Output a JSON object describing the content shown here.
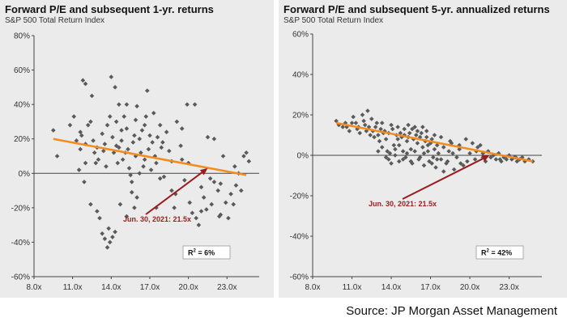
{
  "source_text": "Source: JP Morgan Asset Management",
  "colors": {
    "background": "#ebebeb",
    "marker": "#5a5a5a",
    "trend": "#f28c1e",
    "annotation": "#9b1c1c"
  },
  "chart_data": [
    {
      "type": "scatter",
      "title": "Forward P/E and subsequent 1-yr. returns",
      "subtitle": "S&P 500 Total Return Index",
      "xlabel": "",
      "ylabel": "",
      "xlim": [
        8,
        25.5
      ],
      "ylim": [
        -60,
        80
      ],
      "x_ticks": [
        "8.0x",
        "11.0x",
        "14.0x",
        "17.0x",
        "20.0x",
        "23.0x"
      ],
      "y_ticks": [
        "80%",
        "60%",
        "40%",
        "20%",
        "0%",
        "-20%",
        "-40%",
        "-60%"
      ],
      "trendline": [
        [
          9.5,
          20
        ],
        [
          24.5,
          -1
        ]
      ],
      "annotation": {
        "text": "Jun. 30, 2021: 21.5x",
        "point": [
          21.5,
          3
        ]
      },
      "r_squared": {
        "label": "R",
        "sup": "2",
        "value": "=   6%"
      },
      "points": [
        [
          9.5,
          25
        ],
        [
          9.8,
          10
        ],
        [
          10.8,
          28
        ],
        [
          11.1,
          33
        ],
        [
          11.3,
          19
        ],
        [
          11.6,
          24
        ],
        [
          11.6,
          14
        ],
        [
          11.8,
          54
        ],
        [
          12.0,
          52
        ],
        [
          12.0,
          17
        ],
        [
          11.5,
          2
        ],
        [
          12.2,
          28
        ],
        [
          12.4,
          30
        ],
        [
          12.6,
          19
        ],
        [
          12.8,
          6
        ],
        [
          12.9,
          15
        ],
        [
          12.5,
          45
        ],
        [
          11.9,
          -5
        ],
        [
          12.4,
          -18
        ],
        [
          12.9,
          -22
        ],
        [
          13.1,
          -26
        ],
        [
          13.3,
          -35
        ],
        [
          13.5,
          -38
        ],
        [
          13.7,
          -43
        ],
        [
          13.8,
          -32
        ],
        [
          14.1,
          -37
        ],
        [
          13.9,
          -40
        ],
        [
          14.3,
          -34
        ],
        [
          13.3,
          23
        ],
        [
          13.5,
          17
        ],
        [
          13.6,
          4
        ],
        [
          13.7,
          28
        ],
        [
          13.9,
          33
        ],
        [
          14.0,
          56
        ],
        [
          14.1,
          21
        ],
        [
          14.2,
          12
        ],
        [
          14.3,
          50
        ],
        [
          14.4,
          30
        ],
        [
          14.4,
          16
        ],
        [
          14.6,
          40
        ],
        [
          14.6,
          15
        ],
        [
          14.8,
          19
        ],
        [
          14.9,
          8
        ],
        [
          15.1,
          12
        ],
        [
          15.2,
          26
        ],
        [
          15.2,
          40
        ],
        [
          15.3,
          14
        ],
        [
          15.4,
          3
        ],
        [
          15.5,
          -1
        ],
        [
          15.6,
          -5
        ],
        [
          15.6,
          -11
        ],
        [
          15.7,
          18
        ],
        [
          15.8,
          22
        ],
        [
          15.9,
          31
        ],
        [
          15.9,
          10
        ],
        [
          16.0,
          39
        ],
        [
          16.2,
          20
        ],
        [
          16.3,
          12
        ],
        [
          16.4,
          25
        ],
        [
          16.5,
          4
        ],
        [
          16.6,
          8
        ],
        [
          16.7,
          33
        ],
        [
          16.8,
          48
        ],
        [
          16.9,
          14
        ],
        [
          17.0,
          22
        ],
        [
          17.1,
          2
        ],
        [
          17.2,
          18
        ],
        [
          17.3,
          35
        ],
        [
          17.4,
          10
        ],
        [
          17.5,
          6
        ],
        [
          17.6,
          21
        ],
        [
          17.8,
          28
        ],
        [
          17.9,
          15
        ],
        [
          18.1,
          -2
        ],
        [
          18.3,
          24
        ],
        [
          18.5,
          13
        ],
        [
          18.7,
          7
        ],
        [
          18.9,
          -20
        ],
        [
          19.0,
          -12
        ],
        [
          19.1,
          30
        ],
        [
          19.4,
          16
        ],
        [
          19.5,
          8
        ],
        [
          19.7,
          -4
        ],
        [
          19.9,
          40
        ],
        [
          20.1,
          -17
        ],
        [
          20.3,
          -23
        ],
        [
          20.5,
          40
        ],
        [
          20.6,
          -26
        ],
        [
          20.8,
          -30
        ],
        [
          21.0,
          -8
        ],
        [
          21.2,
          -14
        ],
        [
          21.4,
          -21
        ],
        [
          21.5,
          21
        ],
        [
          21.7,
          -3
        ],
        [
          21.8,
          -18
        ],
        [
          22.0,
          20
        ],
        [
          22.3,
          -10
        ],
        [
          22.4,
          -25
        ],
        [
          22.5,
          -6
        ],
        [
          22.7,
          10
        ],
        [
          22.9,
          -17
        ],
        [
          23.1,
          -26
        ],
        [
          23.3,
          -12
        ],
        [
          23.5,
          -18
        ],
        [
          23.7,
          -7
        ],
        [
          23.9,
          0
        ],
        [
          24.1,
          -10
        ],
        [
          24.3,
          10
        ],
        [
          24.5,
          12
        ],
        [
          24.7,
          7
        ],
        [
          23.6,
          4
        ],
        [
          22.0,
          -5
        ],
        [
          16.0,
          -14
        ],
        [
          15.8,
          -20
        ],
        [
          15.2,
          -25
        ],
        [
          17.8,
          -3
        ],
        [
          18.7,
          -10
        ],
        [
          14.7,
          -18
        ],
        [
          16.2,
          0
        ],
        [
          17.5,
          -20
        ],
        [
          12.7,
          12
        ],
        [
          13.0,
          8
        ],
        [
          14.5,
          6
        ],
        [
          16.6,
          28
        ],
        [
          18.0,
          18
        ],
        [
          15.0,
          33
        ],
        [
          13.4,
          13
        ],
        [
          14.8,
          25
        ],
        [
          12.0,
          6
        ],
        [
          11.7,
          22
        ],
        [
          20.0,
          6
        ],
        [
          21.0,
          -22
        ],
        [
          22.5,
          -24
        ],
        [
          19.5,
          26
        ]
      ]
    },
    {
      "type": "scatter",
      "title": "Forward P/E and subsequent 5-yr. annualized returns",
      "subtitle": "S&P 500 Total Return Index",
      "xlabel": "",
      "ylabel": "",
      "xlim": [
        8,
        25.5
      ],
      "ylim": [
        -60,
        60
      ],
      "x_ticks": [
        "8.0x",
        "11.0x",
        "14.0x",
        "17.0x",
        "20.0x",
        "23.0x"
      ],
      "y_ticks": [
        "60%",
        "40%",
        "20%",
        "0%",
        "-20%",
        "-40%",
        "-60%"
      ],
      "trendline": [
        [
          9.8,
          16
        ],
        [
          24.8,
          -3
        ]
      ],
      "annotation": {
        "text": "Jun. 30, 2021: 21.5x",
        "point": [
          21.5,
          0
        ]
      },
      "r_squared": {
        "label": "R",
        "sup": "2",
        "value": "=   42%"
      },
      "points": [
        [
          9.8,
          17
        ],
        [
          10.0,
          15
        ],
        [
          10.3,
          14
        ],
        [
          10.6,
          14
        ],
        [
          10.8,
          12
        ],
        [
          11.0,
          16
        ],
        [
          11.1,
          19
        ],
        [
          11.3,
          16
        ],
        [
          11.5,
          14
        ],
        [
          11.6,
          11
        ],
        [
          11.8,
          20
        ],
        [
          11.9,
          17
        ],
        [
          12.0,
          15
        ],
        [
          12.1,
          12
        ],
        [
          12.2,
          22
        ],
        [
          12.3,
          14
        ],
        [
          12.5,
          18
        ],
        [
          12.6,
          12
        ],
        [
          12.7,
          9
        ],
        [
          12.8,
          14
        ],
        [
          12.9,
          16
        ],
        [
          13.0,
          10
        ],
        [
          13.1,
          7
        ],
        [
          13.2,
          13
        ],
        [
          13.3,
          16
        ],
        [
          13.4,
          11
        ],
        [
          13.5,
          12
        ],
        [
          13.6,
          8
        ],
        [
          13.7,
          2
        ],
        [
          13.8,
          -2
        ],
        [
          13.9,
          1
        ],
        [
          14.0,
          15
        ],
        [
          14.1,
          13
        ],
        [
          14.2,
          5
        ],
        [
          14.3,
          0
        ],
        [
          14.4,
          10
        ],
        [
          14.5,
          14
        ],
        [
          14.6,
          -3
        ],
        [
          14.7,
          11
        ],
        [
          14.8,
          9
        ],
        [
          14.9,
          2
        ],
        [
          15.0,
          13
        ],
        [
          15.1,
          -1
        ],
        [
          15.2,
          7
        ],
        [
          15.3,
          15
        ],
        [
          15.4,
          11
        ],
        [
          15.5,
          3
        ],
        [
          15.6,
          -4
        ],
        [
          15.7,
          8
        ],
        [
          15.8,
          14
        ],
        [
          15.9,
          10
        ],
        [
          16.0,
          6
        ],
        [
          16.1,
          -2
        ],
        [
          16.2,
          9
        ],
        [
          16.3,
          11
        ],
        [
          16.4,
          4
        ],
        [
          16.5,
          -5
        ],
        [
          16.6,
          7
        ],
        [
          16.7,
          12
        ],
        [
          16.8,
          2
        ],
        [
          16.9,
          -3
        ],
        [
          17.0,
          6
        ],
        [
          17.1,
          8
        ],
        [
          17.2,
          -1
        ],
        [
          17.3,
          3
        ],
        [
          17.4,
          -6
        ],
        [
          17.5,
          5
        ],
        [
          17.6,
          1
        ],
        [
          17.8,
          -2
        ],
        [
          18.0,
          4
        ],
        [
          18.2,
          -4
        ],
        [
          18.4,
          2
        ],
        [
          18.6,
          6
        ],
        [
          18.8,
          -7
        ],
        [
          19.0,
          -1
        ],
        [
          19.2,
          3
        ],
        [
          19.5,
          -5
        ],
        [
          19.7,
          8
        ],
        [
          20.0,
          1
        ],
        [
          20.2,
          6
        ],
        [
          20.4,
          -2
        ],
        [
          20.6,
          4
        ],
        [
          20.8,
          5
        ],
        [
          21.0,
          1
        ],
        [
          21.2,
          -3
        ],
        [
          21.4,
          2
        ],
        [
          21.6,
          -1
        ],
        [
          21.8,
          0
        ],
        [
          22.0,
          -2
        ],
        [
          22.2,
          1
        ],
        [
          22.4,
          -3
        ],
        [
          22.6,
          -1
        ],
        [
          22.8,
          -2
        ],
        [
          23.0,
          0
        ],
        [
          23.2,
          -2
        ],
        [
          23.4,
          -1
        ],
        [
          23.6,
          -3
        ],
        [
          23.8,
          -2
        ],
        [
          24.0,
          -1
        ],
        [
          24.2,
          -3
        ],
        [
          24.5,
          -2
        ],
        [
          24.8,
          -3
        ],
        [
          13.0,
          2
        ],
        [
          13.3,
          4
        ],
        [
          13.6,
          -1
        ],
        [
          14.0,
          -4
        ],
        [
          14.3,
          3
        ],
        [
          14.6,
          5
        ],
        [
          14.9,
          -2
        ],
        [
          15.2,
          1
        ],
        [
          15.5,
          -3
        ],
        [
          15.8,
          2
        ],
        [
          16.2,
          -1
        ],
        [
          16.5,
          1
        ],
        [
          16.8,
          5
        ],
        [
          17.1,
          -4
        ],
        [
          17.5,
          -2
        ],
        [
          18.0,
          -8
        ],
        [
          18.3,
          -3
        ],
        [
          18.7,
          1
        ],
        [
          19.3,
          -4
        ],
        [
          19.8,
          -3
        ],
        [
          15.0,
          10
        ],
        [
          15.6,
          13
        ],
        [
          16.0,
          12
        ],
        [
          16.4,
          14
        ],
        [
          12.4,
          10
        ],
        [
          11.4,
          13
        ],
        [
          10.5,
          16
        ],
        [
          17.8,
          9
        ],
        [
          18.5,
          7
        ],
        [
          19.2,
          5
        ],
        [
          20.5,
          2
        ],
        [
          21.0,
          -1
        ],
        [
          22.3,
          -2
        ],
        [
          23.5,
          -1
        ],
        [
          14.5,
          8
        ],
        [
          13.8,
          11
        ],
        [
          16.7,
          9
        ],
        [
          17.3,
          10
        ],
        [
          15.3,
          9
        ]
      ]
    }
  ]
}
